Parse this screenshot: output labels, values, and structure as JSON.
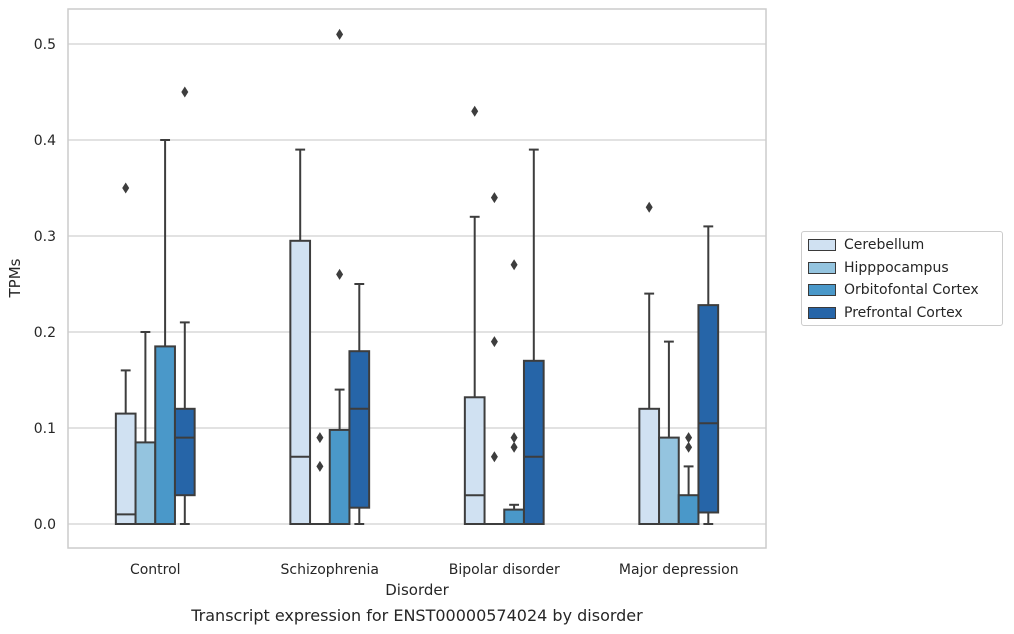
{
  "chart_data": {
    "type": "box",
    "title": "Transcript expression for ENST00000574024 by disorder",
    "xlabel": "Disorder",
    "ylabel": "TPMs",
    "ylim": [
      -0.025,
      0.537
    ],
    "yticks": [
      0.0,
      0.1,
      0.2,
      0.3,
      0.4,
      0.5
    ],
    "ytick_labels": [
      "0.0",
      "0.1",
      "0.2",
      "0.3",
      "0.4",
      "0.5"
    ],
    "categories": [
      "Control",
      "Schizophrenia",
      "Bipolar disorder",
      "Major depression"
    ],
    "grid": true,
    "legend_position": "right",
    "series": [
      {
        "name": "Cerebellum",
        "color": "#d0e1f2",
        "boxes": [
          {
            "q1": 0.0,
            "median": 0.01,
            "q3": 0.115,
            "whisker_low": 0.0,
            "whisker_high": 0.16,
            "outliers": [
              0.35
            ]
          },
          {
            "q1": 0.0,
            "median": 0.07,
            "q3": 0.295,
            "whisker_low": 0.0,
            "whisker_high": 0.39,
            "outliers": []
          },
          {
            "q1": 0.0,
            "median": 0.03,
            "q3": 0.132,
            "whisker_low": 0.0,
            "whisker_high": 0.32,
            "outliers": [
              0.43
            ]
          },
          {
            "q1": 0.0,
            "median": 0.0,
            "q3": 0.12,
            "whisker_low": 0.0,
            "whisker_high": 0.24,
            "outliers": [
              0.33
            ]
          }
        ]
      },
      {
        "name": "Hipppocampus",
        "color": "#94c4df",
        "boxes": [
          {
            "q1": 0.0,
            "median": 0.0,
            "q3": 0.085,
            "whisker_low": 0.0,
            "whisker_high": 0.2,
            "outliers": []
          },
          {
            "q1": 0.0,
            "median": 0.0,
            "q3": 0.0,
            "whisker_low": 0.0,
            "whisker_high": 0.0,
            "outliers": [
              0.06,
              0.09
            ]
          },
          {
            "q1": 0.0,
            "median": 0.0,
            "q3": 0.0,
            "whisker_low": 0.0,
            "whisker_high": 0.0,
            "outliers": [
              0.07,
              0.19,
              0.34
            ]
          },
          {
            "q1": 0.0,
            "median": 0.0,
            "q3": 0.09,
            "whisker_low": 0.0,
            "whisker_high": 0.19,
            "outliers": []
          }
        ]
      },
      {
        "name": "Orbitofontal Cortex",
        "color": "#4a98c9",
        "boxes": [
          {
            "q1": 0.0,
            "median": 0.0,
            "q3": 0.185,
            "whisker_low": 0.0,
            "whisker_high": 0.4,
            "outliers": []
          },
          {
            "q1": 0.0,
            "median": 0.0,
            "q3": 0.098,
            "whisker_low": 0.0,
            "whisker_high": 0.14,
            "outliers": [
              0.26,
              0.51
            ]
          },
          {
            "q1": 0.0,
            "median": 0.0,
            "q3": 0.015,
            "whisker_low": 0.0,
            "whisker_high": 0.02,
            "outliers": [
              0.08,
              0.09,
              0.27
            ]
          },
          {
            "q1": 0.0,
            "median": 0.0,
            "q3": 0.03,
            "whisker_low": 0.0,
            "whisker_high": 0.06,
            "outliers": [
              0.08,
              0.09
            ]
          }
        ]
      },
      {
        "name": "Prefrontal Cortex",
        "color": "#2665a8",
        "boxes": [
          {
            "q1": 0.03,
            "median": 0.09,
            "q3": 0.12,
            "whisker_low": 0.0,
            "whisker_high": 0.21,
            "outliers": [
              0.45
            ]
          },
          {
            "q1": 0.017,
            "median": 0.12,
            "q3": 0.18,
            "whisker_low": 0.0,
            "whisker_high": 0.25,
            "outliers": []
          },
          {
            "q1": 0.0,
            "median": 0.07,
            "q3": 0.17,
            "whisker_low": 0.0,
            "whisker_high": 0.39,
            "outliers": []
          },
          {
            "q1": 0.012,
            "median": 0.105,
            "q3": 0.228,
            "whisker_low": 0.0,
            "whisker_high": 0.31,
            "outliers": []
          }
        ]
      }
    ]
  }
}
